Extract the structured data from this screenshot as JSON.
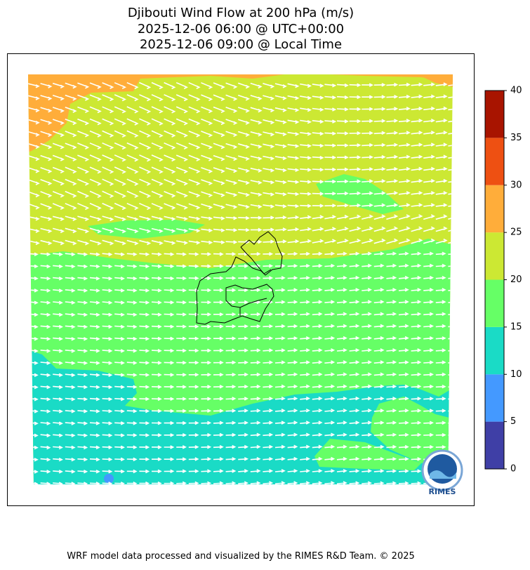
{
  "title": {
    "lines": [
      "Djibouti Wind Flow at 200 hPa (m/s)",
      "2025-12-06 06:00 @ UTC+00:00",
      "2025-12-06 09:00 @ Local Time"
    ]
  },
  "colorbar": {
    "ticks": [
      0,
      5,
      10,
      15,
      20,
      25,
      30,
      35,
      40
    ],
    "colors": [
      "#3f3fa6",
      "#4499ff",
      "#1adbc6",
      "#66ff66",
      "#cce833",
      "#ffad3a",
      "#ee5012",
      "#a81400"
    ]
  },
  "logo": {
    "text": "RIMES"
  },
  "footer": "WRF model data processed and visualized by the RIMES R&D Team. © 2025"
}
